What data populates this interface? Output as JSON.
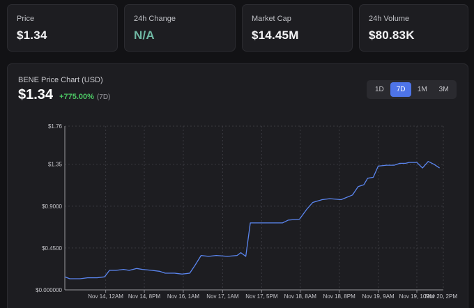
{
  "stats": [
    {
      "label": "Price",
      "value": "$1.34",
      "accent": false
    },
    {
      "label": "24h Change",
      "value": "N/A",
      "accent": true
    },
    {
      "label": "Market Cap",
      "value": "$14.45M",
      "accent": false
    },
    {
      "label": "24h Volume",
      "value": "$80.83K",
      "accent": false
    }
  ],
  "chart_panel": {
    "title": "BENE Price Chart (USD)",
    "price": "$1.34",
    "change": "+775.00%",
    "period": "(7D)",
    "ranges": [
      {
        "label": "1D",
        "active": false
      },
      {
        "label": "7D",
        "active": true
      },
      {
        "label": "1M",
        "active": false
      },
      {
        "label": "3M",
        "active": false
      }
    ]
  },
  "colors": {
    "line": "#5b86f0",
    "positive": "#4cc764",
    "accent_teal": "#6fb8a4",
    "active_range": "#4e74e8"
  },
  "chart_data": {
    "type": "line",
    "title": "BENE Price Chart (USD)",
    "xlabel": "",
    "ylabel": "",
    "ylim": [
      0,
      1.76
    ],
    "yticks": [
      0,
      0.45,
      0.9,
      1.35,
      1.76
    ],
    "ytick_labels": [
      "$0.000000",
      "$0.4500",
      "$0.9000",
      "$1.35",
      "$1.76"
    ],
    "xlim": [
      0,
      1
    ],
    "xticks": [
      0.108,
      0.21,
      0.313,
      0.417,
      0.52,
      0.622,
      0.725,
      0.828,
      0.93
    ],
    "xtick_labels": [
      "Nov 14, 12AM",
      "Nov 14, 8PM",
      "Nov 16, 1AM",
      "Nov 17, 1AM",
      "Nov 17, 5PM",
      "Nov 18, 8AM",
      "Nov 18, 8PM",
      "Nov 19, 9AM",
      "Nov 19, 10PM"
    ],
    "last_tick_label": "Nov 20, 2PM",
    "grid": true,
    "series": [
      {
        "name": "BENE",
        "points": [
          [
            0,
            0.14
          ],
          [
            0.013,
            0.12
          ],
          [
            0.04,
            0.12
          ],
          [
            0.06,
            0.13
          ],
          [
            0.085,
            0.13
          ],
          [
            0.105,
            0.14
          ],
          [
            0.118,
            0.21
          ],
          [
            0.135,
            0.21
          ],
          [
            0.155,
            0.22
          ],
          [
            0.17,
            0.21
          ],
          [
            0.19,
            0.23
          ],
          [
            0.205,
            0.22
          ],
          [
            0.23,
            0.21
          ],
          [
            0.25,
            0.2
          ],
          [
            0.265,
            0.18
          ],
          [
            0.29,
            0.18
          ],
          [
            0.31,
            0.17
          ],
          [
            0.33,
            0.18
          ],
          [
            0.345,
            0.27
          ],
          [
            0.36,
            0.37
          ],
          [
            0.38,
            0.36
          ],
          [
            0.4,
            0.37
          ],
          [
            0.43,
            0.36
          ],
          [
            0.455,
            0.37
          ],
          [
            0.465,
            0.4
          ],
          [
            0.478,
            0.36
          ],
          [
            0.49,
            0.72
          ],
          [
            0.52,
            0.72
          ],
          [
            0.55,
            0.72
          ],
          [
            0.575,
            0.72
          ],
          [
            0.59,
            0.75
          ],
          [
            0.62,
            0.76
          ],
          [
            0.64,
            0.87
          ],
          [
            0.655,
            0.94
          ],
          [
            0.68,
            0.97
          ],
          [
            0.7,
            0.98
          ],
          [
            0.73,
            0.97
          ],
          [
            0.76,
            1.02
          ],
          [
            0.775,
            1.11
          ],
          [
            0.79,
            1.13
          ],
          [
            0.8,
            1.2
          ],
          [
            0.815,
            1.21
          ],
          [
            0.828,
            1.33
          ],
          [
            0.85,
            1.34
          ],
          [
            0.87,
            1.34
          ],
          [
            0.885,
            1.36
          ],
          [
            0.9,
            1.36
          ],
          [
            0.91,
            1.37
          ],
          [
            0.93,
            1.37
          ],
          [
            0.945,
            1.31
          ],
          [
            0.96,
            1.38
          ],
          [
            0.975,
            1.35
          ],
          [
            0.99,
            1.31
          ]
        ]
      }
    ]
  }
}
